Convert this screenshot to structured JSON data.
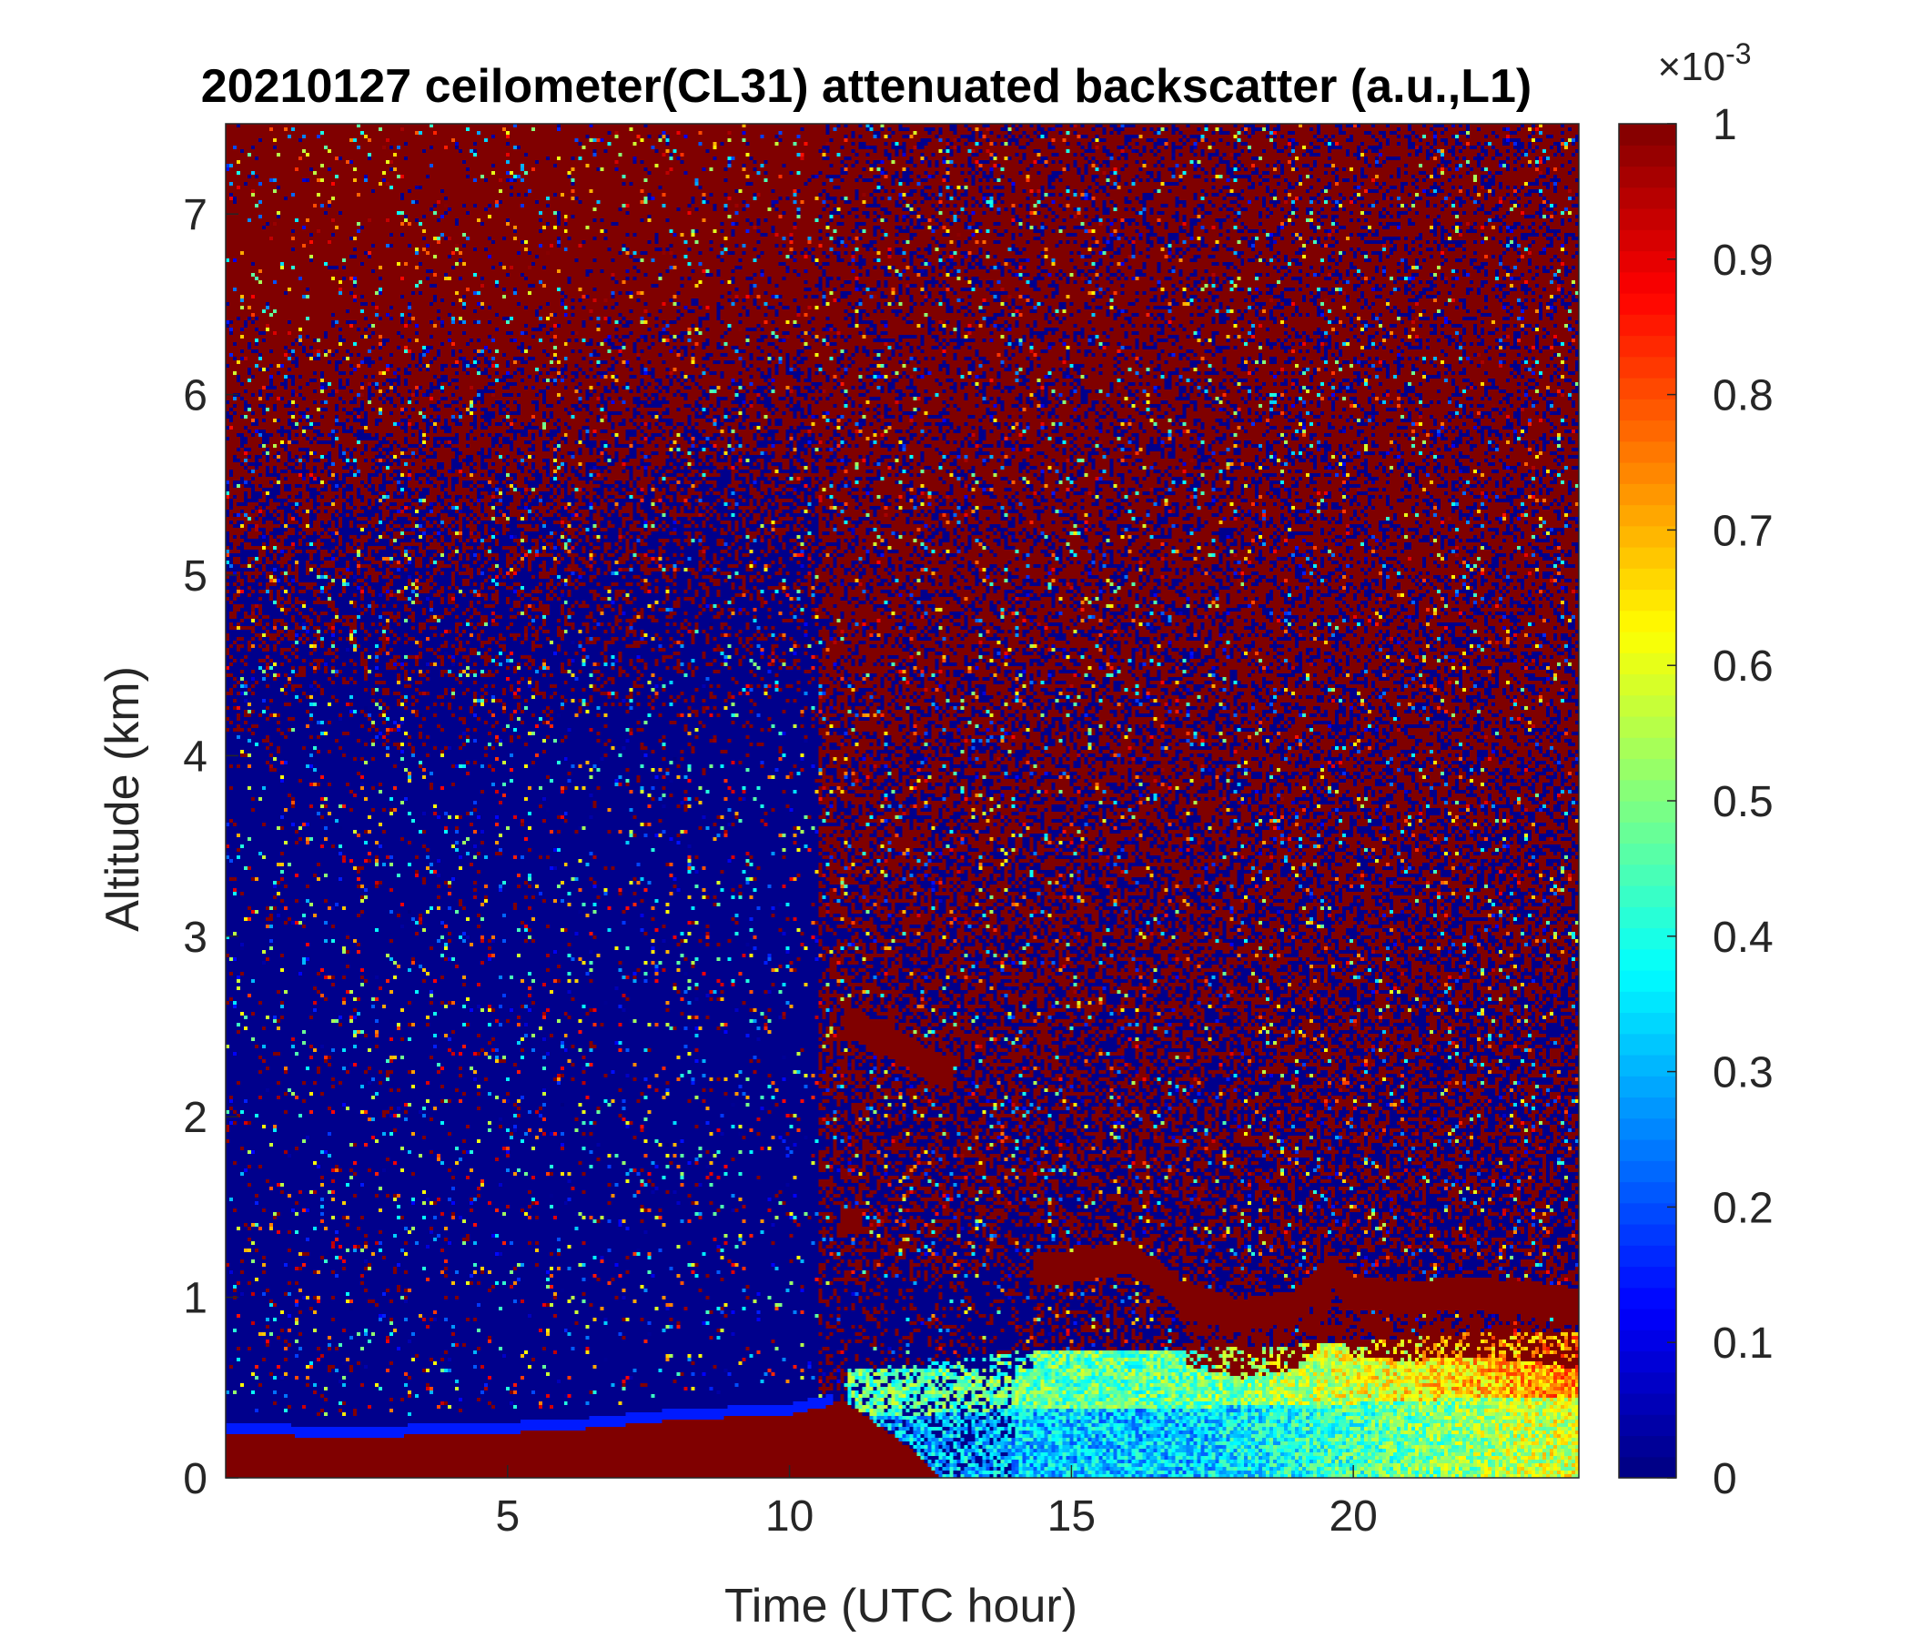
{
  "chart_data": {
    "type": "heatmap",
    "title": "20210127 ceilometer(CL31) attenuated backscatter (a.u.,L1)",
    "xlabel": "Time (UTC hour)",
    "ylabel": "Altitude (km)",
    "xlim": [
      0,
      24
    ],
    "ylim": [
      0,
      7.5
    ],
    "xticks": [
      5,
      10,
      15,
      20
    ],
    "xtick_labels": [
      "5",
      "10",
      "15",
      "20"
    ],
    "yticks": [
      0,
      1,
      2,
      3,
      4,
      5,
      6,
      7
    ],
    "ytick_labels": [
      "0",
      "1",
      "2",
      "3",
      "4",
      "5",
      "6",
      "7"
    ],
    "colorbar": {
      "colormap": "jet",
      "range": [
        0,
        0.001
      ],
      "exponent_label": "×10",
      "exponent_power": "-3",
      "ticks": [
        0,
        0.1,
        0.2,
        0.3,
        0.4,
        0.5,
        0.6,
        0.7,
        0.8,
        0.9,
        1
      ],
      "tick_labels": [
        "0",
        "0.1",
        "0.2",
        "0.3",
        "0.4",
        "0.5",
        "0.6",
        "0.7",
        "0.8",
        "0.9",
        "1"
      ]
    },
    "features": {
      "surface_layer_top_km": [
        [
          0,
          0.25
        ],
        [
          2,
          0.22
        ],
        [
          4,
          0.24
        ],
        [
          6,
          0.26
        ],
        [
          8,
          0.32
        ],
        [
          10,
          0.35
        ],
        [
          11,
          0.42
        ],
        [
          12,
          0.2
        ],
        [
          12.7,
          0.0
        ]
      ],
      "elevated_cloud_km": [
        [
          11.1,
          2.52
        ],
        [
          11.5,
          2.45
        ],
        [
          12,
          2.38
        ],
        [
          12.4,
          2.3
        ],
        [
          12.8,
          2.25
        ]
      ],
      "boundary_layer_cloud_km": [
        [
          14.3,
          1.15
        ],
        [
          15,
          1.17
        ],
        [
          16,
          1.22
        ],
        [
          16.5,
          1.12
        ],
        [
          17,
          0.98
        ],
        [
          18,
          0.9
        ],
        [
          19,
          0.95
        ],
        [
          19.6,
          1.15
        ],
        [
          20,
          1.02
        ],
        [
          21,
          1.0
        ],
        [
          22,
          1.02
        ],
        [
          23,
          1.0
        ],
        [
          24,
          0.95
        ]
      ],
      "haze_layer_km": [
        [
          11.2,
          0.6
        ],
        [
          13,
          0.65
        ],
        [
          14,
          0.7
        ],
        [
          16,
          0.7
        ],
        [
          18,
          0.72
        ],
        [
          20,
          0.75
        ],
        [
          22,
          0.8
        ],
        [
          24,
          0.8
        ]
      ],
      "noisy_sky_onset_hour": 10.5
    }
  }
}
